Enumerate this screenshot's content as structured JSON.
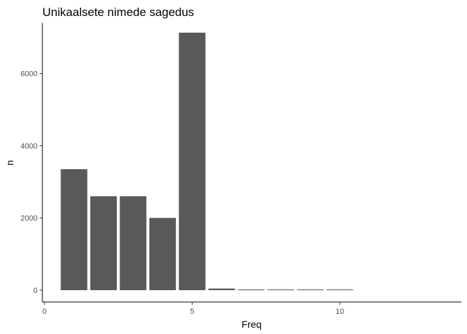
{
  "chart_data": {
    "type": "bar",
    "title": "Unikaalsete nimede sagedus",
    "xlabel": "Freq",
    "ylabel": "n",
    "x": [
      1,
      2,
      3,
      4,
      5,
      6,
      7,
      8,
      9,
      10
    ],
    "values": [
      3350,
      2600,
      2600,
      2000,
      7130,
      45,
      20,
      15,
      12,
      10
    ],
    "xlim": [
      0,
      14
    ],
    "ylim": [
      0,
      7130
    ],
    "xticks": [
      0,
      5,
      10
    ],
    "xtick_labels": [
      "0",
      "5",
      "10"
    ],
    "yticks": [
      0,
      2000,
      4000,
      6000
    ],
    "ytick_labels": [
      "0",
      "2000",
      "4000",
      "6000"
    ],
    "bar_color": "#595959",
    "grid": false,
    "legend": "none"
  }
}
